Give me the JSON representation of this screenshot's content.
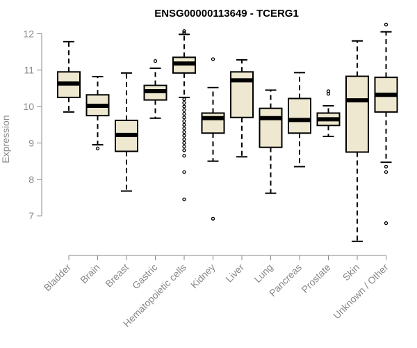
{
  "chart_data": {
    "type": "boxplot",
    "title": "ENSG00000113649 - TCERG1",
    "xlabel": "",
    "ylabel": "Expression",
    "ylim": [
      6.2,
      12.35
    ],
    "yticks": [
      7,
      8,
      9,
      10,
      11,
      12
    ],
    "box_fill": "#eee8d0",
    "axis_color": "#888888",
    "categories": [
      "Bladder",
      "Brain",
      "Breast",
      "Gastric",
      "Hematopoietic cells",
      "Kidney",
      "Liver",
      "Lung",
      "Pancreas",
      "Prostate",
      "Skin",
      "Unknown / Other"
    ],
    "boxes": [
      {
        "name": "Bladder",
        "whisker_low": 9.85,
        "q1": 10.25,
        "median": 10.63,
        "q3": 10.95,
        "whisker_high": 11.78,
        "outliers": []
      },
      {
        "name": "Brain",
        "whisker_low": 8.95,
        "q1": 9.75,
        "median": 10.02,
        "q3": 10.32,
        "whisker_high": 10.82,
        "outliers": [
          8.85
        ]
      },
      {
        "name": "Breast",
        "whisker_low": 7.68,
        "q1": 8.77,
        "median": 9.22,
        "q3": 9.62,
        "whisker_high": 10.92,
        "outliers": []
      },
      {
        "name": "Gastric",
        "whisker_low": 9.68,
        "q1": 10.18,
        "median": 10.42,
        "q3": 10.58,
        "whisker_high": 11.05,
        "outliers": [
          11.25
        ]
      },
      {
        "name": "Hematopoietic cells",
        "whisker_low": 10.25,
        "q1": 10.92,
        "median": 11.18,
        "q3": 11.35,
        "whisker_high": 11.98,
        "outliers": [
          12.02,
          12.07,
          10.2,
          10.1,
          10.0,
          9.9,
          9.8,
          9.7,
          9.6,
          9.5,
          9.4,
          9.3,
          9.2,
          9.1,
          9.0,
          8.9,
          8.8,
          8.65,
          8.2,
          7.45
        ]
      },
      {
        "name": "Kidney",
        "whisker_low": 8.5,
        "q1": 9.27,
        "median": 9.68,
        "q3": 9.82,
        "whisker_high": 10.52,
        "outliers": [
          11.3,
          6.92
        ]
      },
      {
        "name": "Liver",
        "whisker_low": 8.62,
        "q1": 9.7,
        "median": 10.72,
        "q3": 10.95,
        "whisker_high": 11.28,
        "outliers": []
      },
      {
        "name": "Lung",
        "whisker_low": 7.62,
        "q1": 8.88,
        "median": 9.68,
        "q3": 9.95,
        "whisker_high": 10.45,
        "outliers": []
      },
      {
        "name": "Pancreas",
        "whisker_low": 8.35,
        "q1": 9.27,
        "median": 9.63,
        "q3": 10.22,
        "whisker_high": 10.93,
        "outliers": []
      },
      {
        "name": "Prostate",
        "whisker_low": 9.18,
        "q1": 9.48,
        "median": 9.65,
        "q3": 9.82,
        "whisker_high": 10.02,
        "outliers": [
          10.35,
          10.42
        ]
      },
      {
        "name": "Skin",
        "whisker_low": 6.3,
        "q1": 8.75,
        "median": 10.17,
        "q3": 10.83,
        "whisker_high": 11.8,
        "outliers": []
      },
      {
        "name": "Unknown / Other",
        "whisker_low": 8.47,
        "q1": 9.85,
        "median": 10.32,
        "q3": 10.8,
        "whisker_high": 12.05,
        "outliers": [
          12.25,
          8.35,
          8.2,
          6.8
        ]
      }
    ]
  }
}
